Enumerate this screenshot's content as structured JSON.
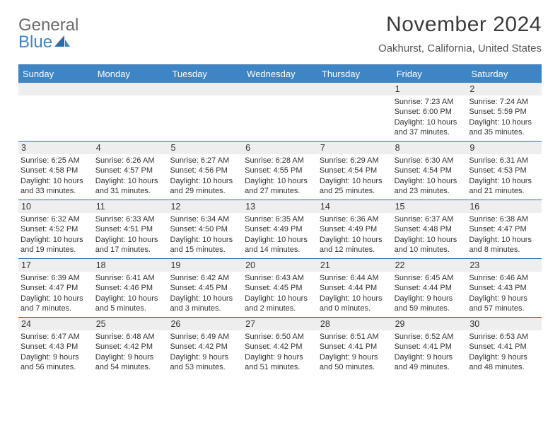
{
  "brand": {
    "part1": "General",
    "part2": "Blue"
  },
  "title": "November 2024",
  "location": "Oakhurst, California, United States",
  "colors": {
    "header_bg": "#3e85c6",
    "rule": "#2f6aa8",
    "daynum_bg": "#eeeeee",
    "text": "#333333",
    "title_text": "#3b3b3b",
    "logo_gray": "#6b6b6b",
    "logo_blue": "#3e85c6"
  },
  "dow": [
    "Sunday",
    "Monday",
    "Tuesday",
    "Wednesday",
    "Thursday",
    "Friday",
    "Saturday"
  ],
  "weeks": [
    [
      null,
      null,
      null,
      null,
      null,
      {
        "n": "1",
        "sr": "Sunrise: 7:23 AM",
        "ss": "Sunset: 6:00 PM",
        "dl": "Daylight: 10 hours and 37 minutes."
      },
      {
        "n": "2",
        "sr": "Sunrise: 7:24 AM",
        "ss": "Sunset: 5:59 PM",
        "dl": "Daylight: 10 hours and 35 minutes."
      }
    ],
    [
      {
        "n": "3",
        "sr": "Sunrise: 6:25 AM",
        "ss": "Sunset: 4:58 PM",
        "dl": "Daylight: 10 hours and 33 minutes."
      },
      {
        "n": "4",
        "sr": "Sunrise: 6:26 AM",
        "ss": "Sunset: 4:57 PM",
        "dl": "Daylight: 10 hours and 31 minutes."
      },
      {
        "n": "5",
        "sr": "Sunrise: 6:27 AM",
        "ss": "Sunset: 4:56 PM",
        "dl": "Daylight: 10 hours and 29 minutes."
      },
      {
        "n": "6",
        "sr": "Sunrise: 6:28 AM",
        "ss": "Sunset: 4:55 PM",
        "dl": "Daylight: 10 hours and 27 minutes."
      },
      {
        "n": "7",
        "sr": "Sunrise: 6:29 AM",
        "ss": "Sunset: 4:54 PM",
        "dl": "Daylight: 10 hours and 25 minutes."
      },
      {
        "n": "8",
        "sr": "Sunrise: 6:30 AM",
        "ss": "Sunset: 4:54 PM",
        "dl": "Daylight: 10 hours and 23 minutes."
      },
      {
        "n": "9",
        "sr": "Sunrise: 6:31 AM",
        "ss": "Sunset: 4:53 PM",
        "dl": "Daylight: 10 hours and 21 minutes."
      }
    ],
    [
      {
        "n": "10",
        "sr": "Sunrise: 6:32 AM",
        "ss": "Sunset: 4:52 PM",
        "dl": "Daylight: 10 hours and 19 minutes."
      },
      {
        "n": "11",
        "sr": "Sunrise: 6:33 AM",
        "ss": "Sunset: 4:51 PM",
        "dl": "Daylight: 10 hours and 17 minutes."
      },
      {
        "n": "12",
        "sr": "Sunrise: 6:34 AM",
        "ss": "Sunset: 4:50 PM",
        "dl": "Daylight: 10 hours and 15 minutes."
      },
      {
        "n": "13",
        "sr": "Sunrise: 6:35 AM",
        "ss": "Sunset: 4:49 PM",
        "dl": "Daylight: 10 hours and 14 minutes."
      },
      {
        "n": "14",
        "sr": "Sunrise: 6:36 AM",
        "ss": "Sunset: 4:49 PM",
        "dl": "Daylight: 10 hours and 12 minutes."
      },
      {
        "n": "15",
        "sr": "Sunrise: 6:37 AM",
        "ss": "Sunset: 4:48 PM",
        "dl": "Daylight: 10 hours and 10 minutes."
      },
      {
        "n": "16",
        "sr": "Sunrise: 6:38 AM",
        "ss": "Sunset: 4:47 PM",
        "dl": "Daylight: 10 hours and 8 minutes."
      }
    ],
    [
      {
        "n": "17",
        "sr": "Sunrise: 6:39 AM",
        "ss": "Sunset: 4:47 PM",
        "dl": "Daylight: 10 hours and 7 minutes."
      },
      {
        "n": "18",
        "sr": "Sunrise: 6:41 AM",
        "ss": "Sunset: 4:46 PM",
        "dl": "Daylight: 10 hours and 5 minutes."
      },
      {
        "n": "19",
        "sr": "Sunrise: 6:42 AM",
        "ss": "Sunset: 4:45 PM",
        "dl": "Daylight: 10 hours and 3 minutes."
      },
      {
        "n": "20",
        "sr": "Sunrise: 6:43 AM",
        "ss": "Sunset: 4:45 PM",
        "dl": "Daylight: 10 hours and 2 minutes."
      },
      {
        "n": "21",
        "sr": "Sunrise: 6:44 AM",
        "ss": "Sunset: 4:44 PM",
        "dl": "Daylight: 10 hours and 0 minutes."
      },
      {
        "n": "22",
        "sr": "Sunrise: 6:45 AM",
        "ss": "Sunset: 4:44 PM",
        "dl": "Daylight: 9 hours and 59 minutes."
      },
      {
        "n": "23",
        "sr": "Sunrise: 6:46 AM",
        "ss": "Sunset: 4:43 PM",
        "dl": "Daylight: 9 hours and 57 minutes."
      }
    ],
    [
      {
        "n": "24",
        "sr": "Sunrise: 6:47 AM",
        "ss": "Sunset: 4:43 PM",
        "dl": "Daylight: 9 hours and 56 minutes."
      },
      {
        "n": "25",
        "sr": "Sunrise: 6:48 AM",
        "ss": "Sunset: 4:42 PM",
        "dl": "Daylight: 9 hours and 54 minutes."
      },
      {
        "n": "26",
        "sr": "Sunrise: 6:49 AM",
        "ss": "Sunset: 4:42 PM",
        "dl": "Daylight: 9 hours and 53 minutes."
      },
      {
        "n": "27",
        "sr": "Sunrise: 6:50 AM",
        "ss": "Sunset: 4:42 PM",
        "dl": "Daylight: 9 hours and 51 minutes."
      },
      {
        "n": "28",
        "sr": "Sunrise: 6:51 AM",
        "ss": "Sunset: 4:41 PM",
        "dl": "Daylight: 9 hours and 50 minutes."
      },
      {
        "n": "29",
        "sr": "Sunrise: 6:52 AM",
        "ss": "Sunset: 4:41 PM",
        "dl": "Daylight: 9 hours and 49 minutes."
      },
      {
        "n": "30",
        "sr": "Sunrise: 6:53 AM",
        "ss": "Sunset: 4:41 PM",
        "dl": "Daylight: 9 hours and 48 minutes."
      }
    ]
  ]
}
